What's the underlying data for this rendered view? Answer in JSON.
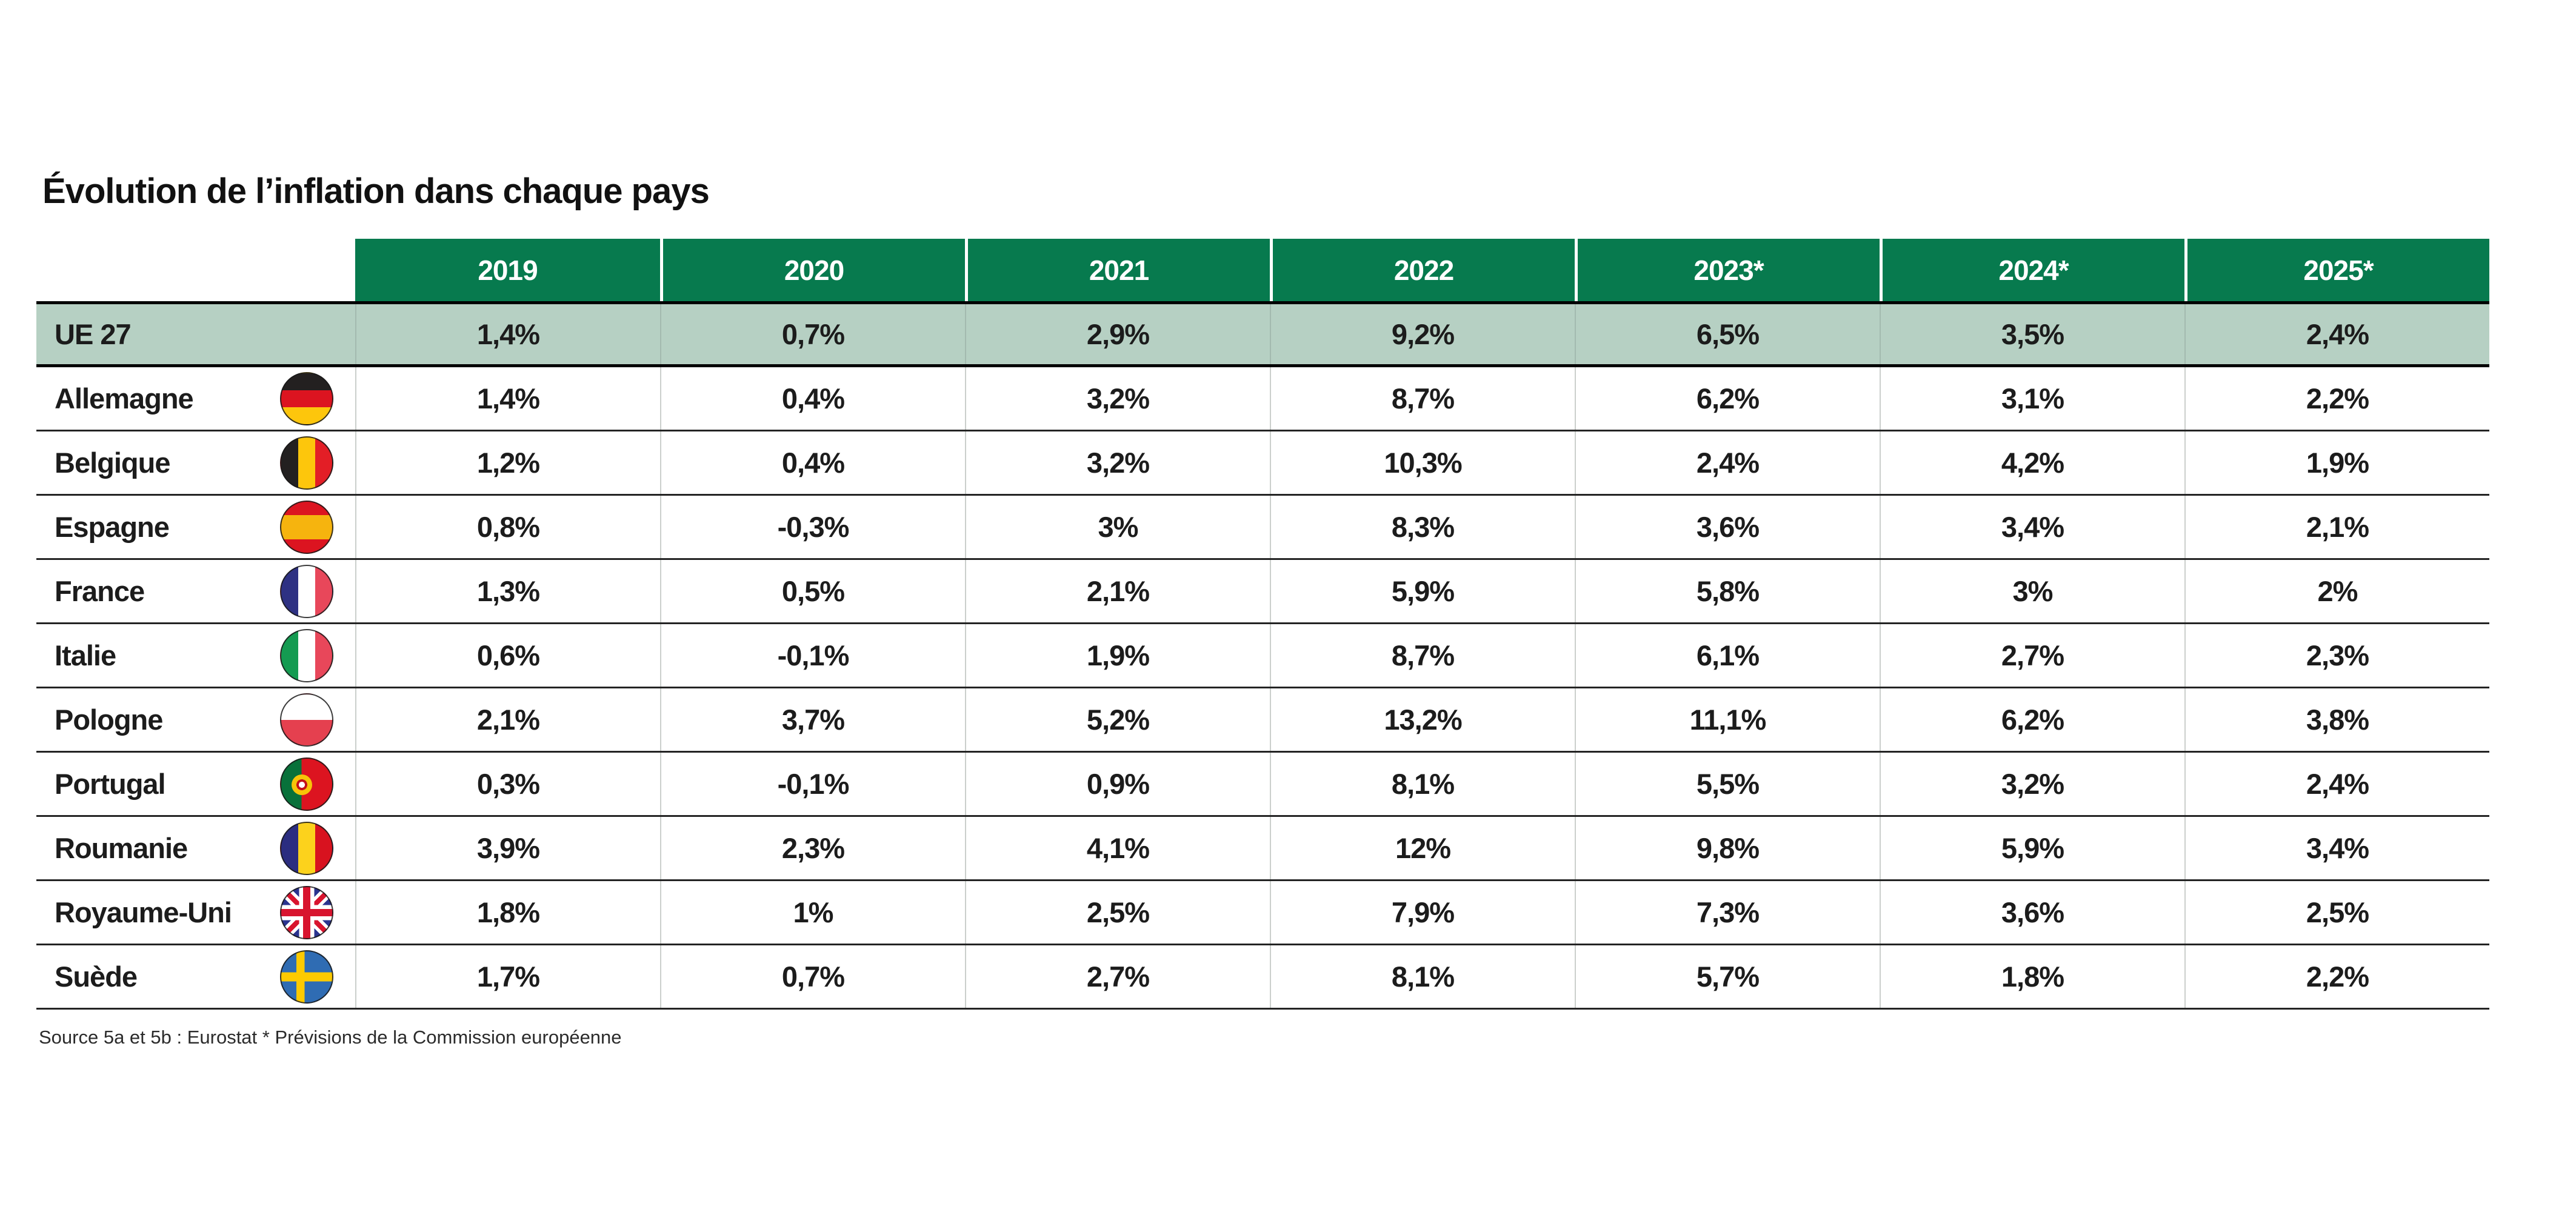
{
  "title": "Évolution de l’inflation dans chaque pays",
  "source": "Source 5a et 5b : Eurostat * Prévisions de la Commission européenne",
  "colors": {
    "header_green": "#077a4e",
    "highlight_row_bg": "#b6d0c3",
    "text": "#1c1c1c"
  },
  "table": {
    "year_headers": [
      "2019",
      "2020",
      "2021",
      "2022",
      "2023*",
      "2024*",
      "2025*"
    ],
    "rows": [
      {
        "label": "UE 27",
        "flag": null,
        "highlight": true,
        "values": [
          "1,4%",
          "0,7%",
          "2,9%",
          "9,2%",
          "6,5%",
          "3,5%",
          "2,4%"
        ]
      },
      {
        "label": "Allemagne",
        "flag": "germany",
        "highlight": false,
        "values": [
          "1,4%",
          "0,4%",
          "3,2%",
          "8,7%",
          "6,2%",
          "3,1%",
          "2,2%"
        ]
      },
      {
        "label": "Belgique",
        "flag": "belgium",
        "highlight": false,
        "values": [
          "1,2%",
          "0,4%",
          "3,2%",
          "10,3%",
          "2,4%",
          "4,2%",
          "1,9%"
        ]
      },
      {
        "label": "Espagne",
        "flag": "spain",
        "highlight": false,
        "values": [
          "0,8%",
          "-0,3%",
          "3%",
          "8,3%",
          "3,6%",
          "3,4%",
          "2,1%"
        ]
      },
      {
        "label": "France",
        "flag": "france",
        "highlight": false,
        "values": [
          "1,3%",
          "0,5%",
          "2,1%",
          "5,9%",
          "5,8%",
          "3%",
          "2%"
        ]
      },
      {
        "label": "Italie",
        "flag": "italy",
        "highlight": false,
        "values": [
          "0,6%",
          "-0,1%",
          "1,9%",
          "8,7%",
          "6,1%",
          "2,7%",
          "2,3%"
        ]
      },
      {
        "label": "Pologne",
        "flag": "poland",
        "highlight": false,
        "values": [
          "2,1%",
          "3,7%",
          "5,2%",
          "13,2%",
          "11,1%",
          "6,2%",
          "3,8%"
        ]
      },
      {
        "label": "Portugal",
        "flag": "portugal",
        "highlight": false,
        "values": [
          "0,3%",
          "-0,1%",
          "0,9%",
          "8,1%",
          "5,5%",
          "3,2%",
          "2,4%"
        ]
      },
      {
        "label": "Roumanie",
        "flag": "romania",
        "highlight": false,
        "values": [
          "3,9%",
          "2,3%",
          "4,1%",
          "12%",
          "9,8%",
          "5,9%",
          "3,4%"
        ]
      },
      {
        "label": "Royaume-Uni",
        "flag": "uk",
        "highlight": false,
        "values": [
          "1,8%",
          "1%",
          "2,5%",
          "7,9%",
          "7,3%",
          "3,6%",
          "2,5%"
        ]
      },
      {
        "label": "Suède",
        "flag": "sweden",
        "highlight": false,
        "values": [
          "1,7%",
          "0,7%",
          "2,7%",
          "8,1%",
          "5,7%",
          "1,8%",
          "2,2%"
        ]
      }
    ]
  },
  "chart_data": {
    "type": "table",
    "title": "Évolution de l’inflation dans chaque pays",
    "unit": "%",
    "columns": [
      "2019",
      "2020",
      "2021",
      "2022",
      "2023*",
      "2024*",
      "2025*"
    ],
    "forecast_note": "* Prévisions de la Commission européenne",
    "series": [
      {
        "name": "UE 27",
        "values": [
          1.4,
          0.7,
          2.9,
          9.2,
          6.5,
          3.5,
          2.4
        ]
      },
      {
        "name": "Allemagne",
        "values": [
          1.4,
          0.4,
          3.2,
          8.7,
          6.2,
          3.1,
          2.2
        ]
      },
      {
        "name": "Belgique",
        "values": [
          1.2,
          0.4,
          3.2,
          10.3,
          2.4,
          4.2,
          1.9
        ]
      },
      {
        "name": "Espagne",
        "values": [
          0.8,
          -0.3,
          3,
          8.3,
          3.6,
          3.4,
          2.1
        ]
      },
      {
        "name": "France",
        "values": [
          1.3,
          0.5,
          2.1,
          5.9,
          5.8,
          3,
          2
        ]
      },
      {
        "name": "Italie",
        "values": [
          0.6,
          -0.1,
          1.9,
          8.7,
          6.1,
          2.7,
          2.3
        ]
      },
      {
        "name": "Pologne",
        "values": [
          2.1,
          3.7,
          5.2,
          13.2,
          11.1,
          6.2,
          3.8
        ]
      },
      {
        "name": "Portugal",
        "values": [
          0.3,
          -0.1,
          0.9,
          8.1,
          5.5,
          3.2,
          2.4
        ]
      },
      {
        "name": "Roumanie",
        "values": [
          3.9,
          2.3,
          4.1,
          12,
          9.8,
          5.9,
          3.4
        ]
      },
      {
        "name": "Royaume-Uni",
        "values": [
          1.8,
          1,
          2.5,
          7.9,
          7.3,
          3.6,
          2.5
        ]
      },
      {
        "name": "Suède",
        "values": [
          1.7,
          0.7,
          2.7,
          8.1,
          5.7,
          1.8,
          2.2
        ]
      }
    ]
  }
}
